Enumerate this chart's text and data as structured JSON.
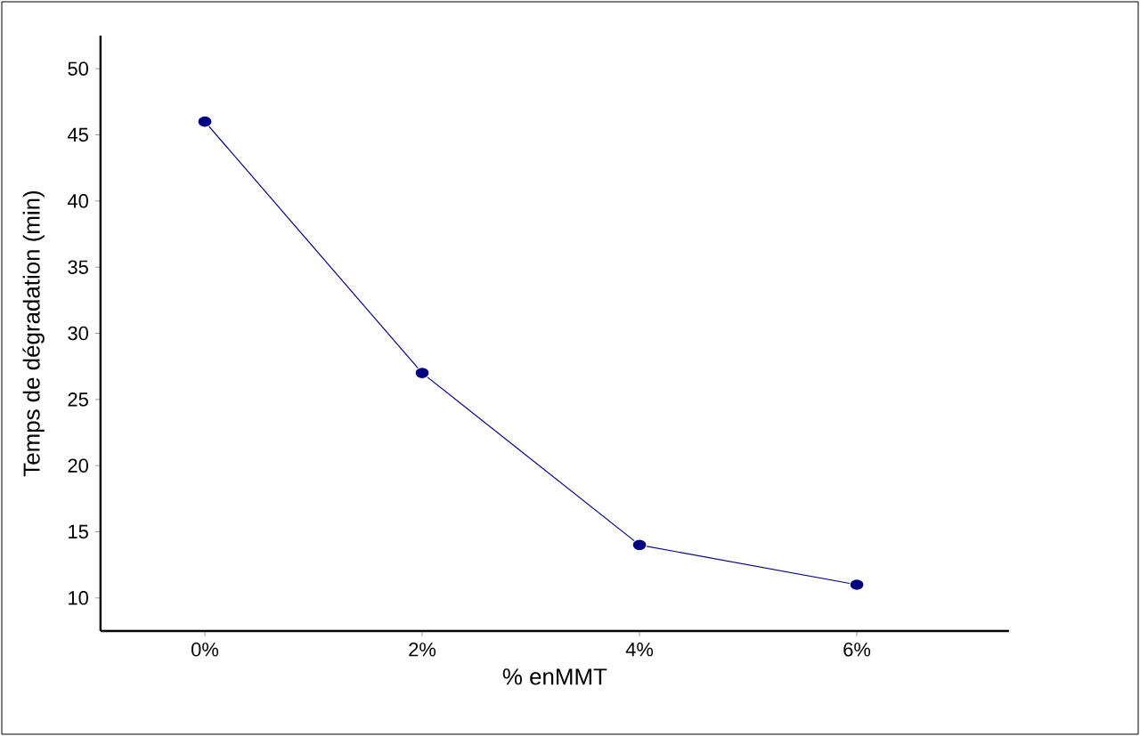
{
  "chart_data": {
    "type": "line",
    "xlabel": "% enMMT",
    "ylabel": "Temps de dégradation (min)",
    "categories": [
      "0%",
      "2%",
      "4%",
      "6%"
    ],
    "series": [
      {
        "color": "#000080",
        "values": [
          46,
          27,
          14,
          11
        ]
      }
    ],
    "ylim": [
      7.5,
      52.5
    ],
    "yticks": [
      10,
      15,
      20,
      25,
      30,
      35,
      40,
      45,
      50
    ],
    "marker": "circle",
    "line_style": "solid",
    "grid": false
  }
}
